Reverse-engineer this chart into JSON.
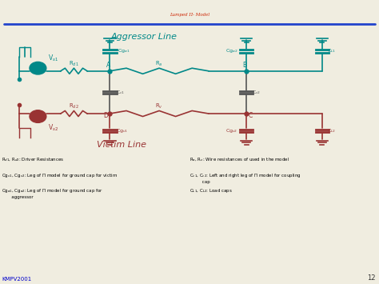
{
  "title": "Lumped Π- Model",
  "title_color": "#cc2200",
  "title_fontsize": 22,
  "bg_color": "#f0ede0",
  "header_line_color": "#2244cc",
  "aggressor_label": "Aggressor Line",
  "victim_label": "Victim Line",
  "aggressor_color": "#008888",
  "victim_color": "#993333",
  "wire_color": "#008888",
  "wire_color2": "#993333",
  "label_color_a": "#008888",
  "label_color_v": "#993333",
  "footnote_color": "#000000",
  "kmpv_color": "#0000cc",
  "footnotes_left": [
    "R$_{d1}$, R$_{d2}$: Driver Resistances",
    "Cg$_{v1}$, Cg$_{v2}$: Leg of Π model for ground cap for victim",
    "Cg$_{a1}$, Cg$_{a2}$: Leg of Π model for ground cap for\n       aggressor"
  ],
  "footnotes_right": [
    "R$_a$, R$_v$: Wire resistances of used in the model",
    "C$_{c1}$, C$_{c2}$: Left and right leg of Π model for coupling\n         cap",
    "C$_{L1}$, C$_{L2}$: Load caps"
  ],
  "page_num": "12"
}
